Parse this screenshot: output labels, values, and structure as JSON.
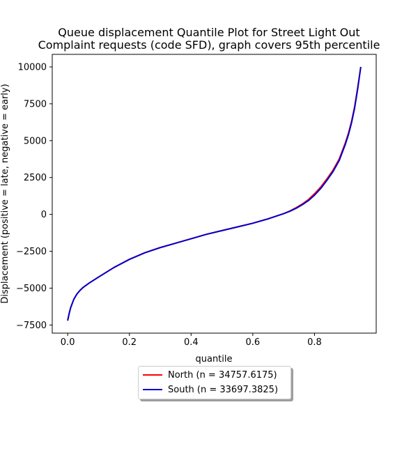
{
  "chart_data": {
    "type": "line",
    "title_lines": [
      "Queue displacement Quantile Plot for Street Light Out",
      "Complaint  requests (code SFD), graph covers 95th percentile"
    ],
    "xlabel": "quantile",
    "ylabel": "Displacement (positive = late, negative = early)",
    "xlim": [
      -0.05,
      1.0
    ],
    "ylim": [
      -8050,
      10850
    ],
    "x_ticks": [
      0.0,
      0.2,
      0.4,
      0.6,
      0.8
    ],
    "x_tick_labels": [
      "0.0",
      "0.2",
      "0.4",
      "0.6",
      "0.8"
    ],
    "y_ticks": [
      -7500,
      -5000,
      -2500,
      0,
      2500,
      5000,
      7500,
      10000
    ],
    "y_tick_labels": [
      "−7500",
      "−5000",
      "−2500",
      "0",
      "2500",
      "5000",
      "7500",
      "10000"
    ],
    "grid": false,
    "legend_placement": "below plot, center",
    "series": [
      {
        "name": "North (n = 34757.6175)",
        "color": "#ff0000",
        "x": [
          0.0,
          0.005,
          0.01,
          0.02,
          0.03,
          0.04,
          0.05,
          0.07,
          0.1,
          0.15,
          0.2,
          0.25,
          0.3,
          0.35,
          0.4,
          0.45,
          0.5,
          0.55,
          0.6,
          0.65,
          0.7,
          0.72,
          0.74,
          0.76,
          0.78,
          0.8,
          0.82,
          0.84,
          0.86,
          0.88,
          0.9,
          0.91,
          0.92,
          0.93,
          0.94,
          0.95
        ],
        "y": [
          -7200,
          -6700,
          -6300,
          -5750,
          -5400,
          -5150,
          -4950,
          -4650,
          -4250,
          -3600,
          -3050,
          -2600,
          -2250,
          -1950,
          -1650,
          -1350,
          -1100,
          -850,
          -600,
          -300,
          50,
          230,
          450,
          700,
          1000,
          1400,
          1850,
          2400,
          3000,
          3750,
          4850,
          5500,
          6300,
          7300,
          8600,
          10000
        ]
      },
      {
        "name": "South (n = 33697.3825)",
        "color": "#0000cc",
        "x": [
          0.0,
          0.005,
          0.01,
          0.02,
          0.03,
          0.04,
          0.05,
          0.07,
          0.1,
          0.15,
          0.2,
          0.25,
          0.3,
          0.35,
          0.4,
          0.45,
          0.5,
          0.55,
          0.6,
          0.65,
          0.7,
          0.72,
          0.74,
          0.76,
          0.78,
          0.8,
          0.82,
          0.84,
          0.86,
          0.88,
          0.9,
          0.91,
          0.92,
          0.93,
          0.94,
          0.95
        ],
        "y": [
          -7200,
          -6700,
          -6300,
          -5750,
          -5400,
          -5150,
          -4950,
          -4650,
          -4250,
          -3600,
          -3050,
          -2600,
          -2250,
          -1950,
          -1650,
          -1350,
          -1100,
          -850,
          -600,
          -300,
          50,
          210,
          410,
          650,
          930,
          1300,
          1750,
          2300,
          2900,
          3650,
          4750,
          5400,
          6200,
          7200,
          8500,
          10000
        ]
      }
    ]
  }
}
